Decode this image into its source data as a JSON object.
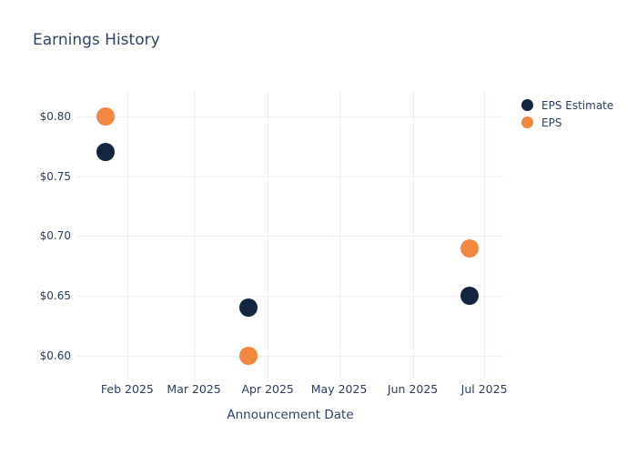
{
  "page": {
    "background": "#ffffff"
  },
  "chart_data": {
    "type": "scatter",
    "title": "Earnings History",
    "xlabel": "Announcement Date",
    "ylabel": "",
    "grid": true,
    "legend_position": "right",
    "colors": {
      "title_text": "#2e4369",
      "tick_text": "#2a3f5f",
      "gridline": "#ebeef5"
    },
    "x_range": [
      "2025-01-11",
      "2025-07-09"
    ],
    "y_range": [
      0.581,
      0.821
    ],
    "x_ticks": [
      {
        "date": "2025-02-01",
        "label": "Feb 2025"
      },
      {
        "date": "2025-03-01",
        "label": "Mar 2025"
      },
      {
        "date": "2025-04-01",
        "label": "Apr 2025"
      },
      {
        "date": "2025-05-01",
        "label": "May 2025"
      },
      {
        "date": "2025-06-01",
        "label": "Jun 2025"
      },
      {
        "date": "2025-07-01",
        "label": "Jul 2025"
      }
    ],
    "y_ticks": [
      {
        "value": 0.8,
        "label": "$0.80"
      },
      {
        "value": 0.75,
        "label": "$0.75"
      },
      {
        "value": 0.7,
        "label": "$0.70"
      },
      {
        "value": 0.65,
        "label": "$0.65"
      },
      {
        "value": 0.6,
        "label": "$0.60"
      }
    ],
    "series": [
      {
        "name": "EPS Estimate",
        "color": "#142540",
        "points": [
          {
            "x": "2025-01-23",
            "y": 0.77
          },
          {
            "x": "2025-03-24",
            "y": 0.64
          },
          {
            "x": "2025-06-25",
            "y": 0.65
          }
        ]
      },
      {
        "name": "EPS",
        "color": "#f2883f",
        "points": [
          {
            "x": "2025-01-23",
            "y": 0.8
          },
          {
            "x": "2025-03-24",
            "y": 0.6
          },
          {
            "x": "2025-06-25",
            "y": 0.69
          }
        ]
      }
    ]
  }
}
